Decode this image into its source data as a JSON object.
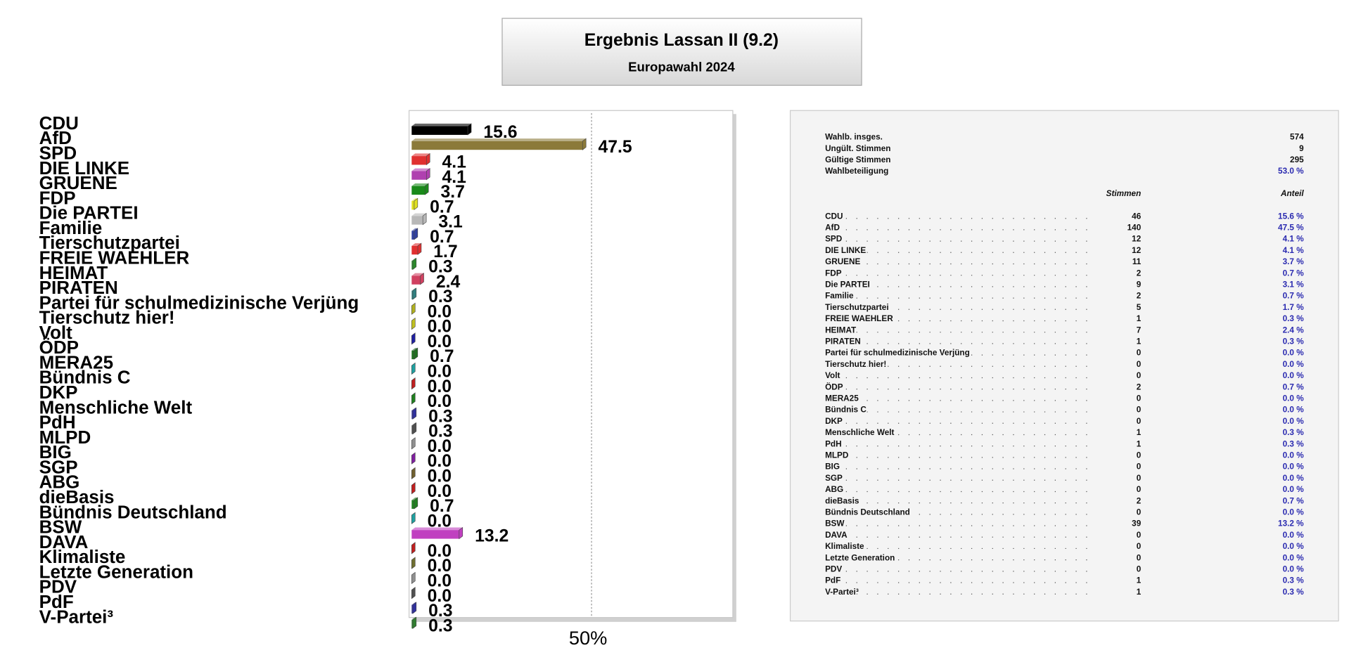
{
  "title": "Ergebnis Lassan II (9.2)",
  "subtitle": "Europawahl 2024",
  "chart_data": {
    "type": "bar",
    "orientation": "horizontal",
    "categories": [
      "CDU",
      "AfD",
      "SPD",
      "DIE LINKE",
      "GRUENE",
      "FDP",
      "Die PARTEI",
      "Familie",
      "Tierschutzpartei",
      "FREIE WAEHLER",
      "HEIMAT",
      "PIRATEN",
      "Partei für schulmedizinische Verjüng",
      "Tierschutz hier!",
      "Volt",
      "ÖDP",
      "MERA25",
      "Bündnis C",
      "DKP",
      "Menschliche Welt",
      "PdH",
      "MLPD",
      "BIG",
      "SGP",
      "ABG",
      "dieBasis",
      "Bündnis Deutschland",
      "BSW",
      "DAVA",
      "Klimaliste",
      "Letzte Generation",
      "PDV",
      "PdF",
      "V-Partei³"
    ],
    "values": [
      15.6,
      47.5,
      4.1,
      4.1,
      3.7,
      0.7,
      3.1,
      0.7,
      1.7,
      0.3,
      2.4,
      0.3,
      0,
      0,
      0,
      0.7,
      0,
      0,
      0,
      0.3,
      0.3,
      0,
      0,
      0,
      0,
      0.7,
      0,
      13.2,
      0,
      0,
      0,
      0,
      0.3,
      0.3
    ],
    "value_labels": [
      "15.6",
      "47.5",
      "4.1",
      "4.1",
      "3.7",
      "0.7",
      "3.1",
      "0.7",
      "1.7",
      "0.3",
      "2.4",
      "0.3",
      "0.0",
      "0.0",
      "0.0",
      "0.7",
      "0.0",
      "0.0",
      "0.0",
      "0.3",
      "0.3",
      "0.0",
      "0.0",
      "0.0",
      "0.0",
      "0.7",
      "0.0",
      "13.2",
      "0.0",
      "0.0",
      "0.0",
      "0.0",
      "0.3",
      "0.3"
    ],
    "colors": [
      "#000000",
      "#8b7a3a",
      "#e03030",
      "#b040b0",
      "#1a8a1a",
      "#e0e020",
      "#b8b8b8",
      "#3040a0",
      "#e03030",
      "#2a8a2a",
      "#d04060",
      "#308080",
      "#b0b020",
      "#c0c020",
      "#2020a0",
      "#207020",
      "#20a0a0",
      "#c02020",
      "#208020",
      "#3030a0",
      "#505050",
      "#909090",
      "#8020a0",
      "#706030",
      "#c02020",
      "#208020",
      "#20a0a0",
      "#c040c0",
      "#c02020",
      "#707030",
      "#909090",
      "#505050",
      "#3030a0",
      "#308030"
    ],
    "xlim": [
      0,
      90
    ],
    "xticks": [
      {
        "value": 50,
        "label": "50%"
      }
    ],
    "grid": true
  },
  "table": {
    "summary": [
      [
        "Wahlb. insges.",
        "574"
      ],
      [
        "Ungült. Stimmen",
        "9"
      ],
      [
        "Gültige Stimmen",
        "295"
      ],
      [
        "Wahlbeteiligung",
        "53.0 %"
      ]
    ],
    "columns": [
      "Stimmen",
      "Anteil"
    ],
    "rows": [
      [
        "CDU",
        "46",
        "15.6 %"
      ],
      [
        "AfD",
        "140",
        "47.5 %"
      ],
      [
        "SPD",
        "12",
        "4.1 %"
      ],
      [
        "DIE LINKE",
        "12",
        "4.1 %"
      ],
      [
        "GRUENE",
        "11",
        "3.7 %"
      ],
      [
        "FDP",
        "2",
        "0.7 %"
      ],
      [
        "Die PARTEI",
        "9",
        "3.1 %"
      ],
      [
        "Familie",
        "2",
        "0.7 %"
      ],
      [
        "Tierschutzpartei",
        "5",
        "1.7 %"
      ],
      [
        "FREIE WAEHLER",
        "1",
        "0.3 %"
      ],
      [
        "HEIMAT",
        "7",
        "2.4 %"
      ],
      [
        "PIRATEN",
        "1",
        "0.3 %"
      ],
      [
        "Partei für schulmedizinische Verjüng",
        "0",
        "0.0 %"
      ],
      [
        "Tierschutz hier!",
        "0",
        "0.0 %"
      ],
      [
        "Volt",
        "0",
        "0.0 %"
      ],
      [
        "ÖDP",
        "2",
        "0.7 %"
      ],
      [
        "MERA25",
        "0",
        "0.0 %"
      ],
      [
        "Bündnis C",
        "0",
        "0.0 %"
      ],
      [
        "DKP",
        "0",
        "0.0 %"
      ],
      [
        "Menschliche Welt",
        "1",
        "0.3 %"
      ],
      [
        "PdH",
        "1",
        "0.3 %"
      ],
      [
        "MLPD",
        "0",
        "0.0 %"
      ],
      [
        "BIG",
        "0",
        "0.0 %"
      ],
      [
        "SGP",
        "0",
        "0.0 %"
      ],
      [
        "ABG",
        "0",
        "0.0 %"
      ],
      [
        "dieBasis",
        "2",
        "0.7 %"
      ],
      [
        "Bündnis Deutschland",
        "0",
        "0.0 %"
      ],
      [
        "BSW",
        "39",
        "13.2 %"
      ],
      [
        "DAVA",
        "0",
        "0.0 %"
      ],
      [
        "Klimaliste",
        "0",
        "0.0 %"
      ],
      [
        "Letzte Generation",
        "0",
        "0.0 %"
      ],
      [
        "PDV",
        "0",
        "0.0 %"
      ],
      [
        "PdF",
        "1",
        "0.3 %"
      ],
      [
        "V-Partei³",
        "1",
        "0.3 %"
      ]
    ]
  }
}
